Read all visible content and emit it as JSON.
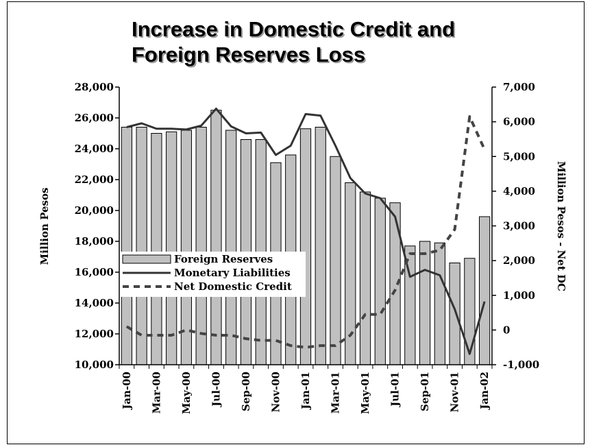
{
  "chart_data": {
    "type": "bar",
    "title_line1": "Increase in Domestic Credit and",
    "title_line2": "Foreign Reserves Loss",
    "ylabel_left": "Million Pesos",
    "ylabel_right": "Million Pesos - Net DC",
    "ylim_left": [
      10000,
      28000
    ],
    "ylim_right": [
      -1000,
      7000
    ],
    "yticks_left": [
      "10,000",
      "12,000",
      "14,000",
      "16,000",
      "18,000",
      "20,000",
      "22,000",
      "24,000",
      "26,000",
      "28,000"
    ],
    "yticks_right": [
      "-1,000",
      "0",
      "1,000",
      "2,000",
      "3,000",
      "4,000",
      "5,000",
      "6,000",
      "7,000"
    ],
    "categories": [
      "Jan-00",
      "Feb-00",
      "Mar-00",
      "Apr-00",
      "May-00",
      "Jun-00",
      "Jul-00",
      "Aug-00",
      "Sep-00",
      "Oct-00",
      "Nov-00",
      "Dec-00",
      "Jan-01",
      "Feb-01",
      "Mar-01",
      "Apr-01",
      "May-01",
      "Jun-01",
      "Jul-01",
      "Aug-01",
      "Sep-01",
      "Oct-01",
      "Nov-01",
      "Dec-01",
      "Jan-02"
    ],
    "xtick_labels": [
      "Jan-00",
      "Mar-00",
      "May-00",
      "Jul-00",
      "Sep-00",
      "Nov-00",
      "Jan-01",
      "Mar-01",
      "May-01",
      "Jul-01",
      "Sep-01",
      "Nov-01",
      "Jan-02"
    ],
    "legend_position": "left",
    "series": [
      {
        "name": "Foreign Reserves",
        "type": "bar",
        "axis": "left",
        "color": "#c0c0c0",
        "values": [
          25400,
          25400,
          25000,
          25100,
          25200,
          25400,
          26500,
          25200,
          24600,
          24600,
          23100,
          23600,
          25300,
          25400,
          23500,
          21800,
          21200,
          20800,
          20500,
          17700,
          18000,
          17900,
          16600,
          16900,
          19600
        ]
      },
      {
        "name": "Monetary Liabilities",
        "type": "line",
        "axis": "left",
        "color": "#333333",
        "values": [
          25400,
          25650,
          25300,
          25300,
          25250,
          25500,
          26600,
          25450,
          25000,
          25050,
          23600,
          24200,
          26250,
          26150,
          24200,
          22100,
          21100,
          20800,
          19600,
          15700,
          16150,
          15800,
          13600,
          10700,
          14100
        ]
      },
      {
        "name": "Net Domestic Credit",
        "type": "line",
        "axis": "right",
        "dashed": true,
        "color": "#444444",
        "values": [
          100,
          -150,
          -150,
          -150,
          0,
          -100,
          -150,
          -150,
          -250,
          -300,
          -300,
          -450,
          -500,
          -450,
          -450,
          -150,
          450,
          450,
          1150,
          2200,
          2200,
          2300,
          2900,
          6150,
          5200
        ]
      }
    ]
  }
}
